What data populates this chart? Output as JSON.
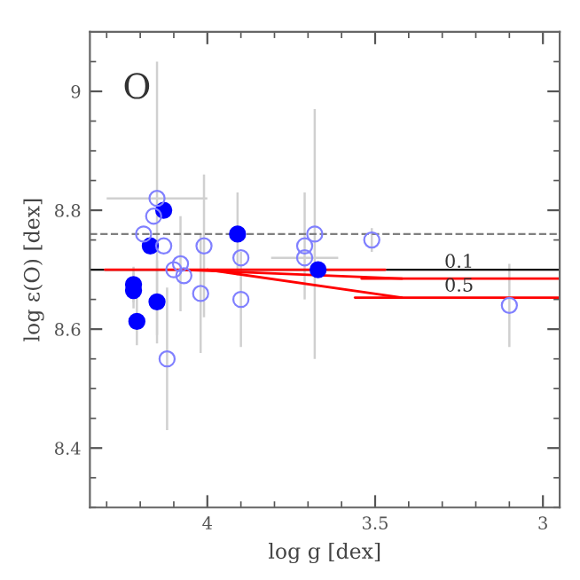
{
  "chart_data": {
    "type": "scatter",
    "xlabel": "log g [dex]",
    "ylabel": "log ε(O) [dex]",
    "xlim": [
      4.35,
      2.95
    ],
    "ylim": [
      8.3,
      9.1
    ],
    "xticks": [
      4,
      3.5,
      3
    ],
    "yticks": [
      8.4,
      8.6,
      8.8,
      9
    ],
    "grid": false,
    "legend": false,
    "annotations": [
      "O",
      {
        "text": "0.1",
        "x": 3.25,
        "y": 8.712
      },
      {
        "text": "0.5",
        "x": 3.25,
        "y": 8.672
      }
    ],
    "ref_lines": [
      {
        "axis": "y",
        "value": 8.76,
        "color": "#808080",
        "line_style": "dashed"
      },
      {
        "axis": "y",
        "value": 8.7,
        "color": "#000000",
        "line_style": "solid"
      }
    ],
    "series": [
      {
        "marker": "circle",
        "color": "#0000ff",
        "x": [
          4.13,
          4.17,
          3.91,
          3.67,
          4.22,
          4.22,
          4.15,
          4.21
        ],
        "values": [
          8.8,
          8.74,
          8.76,
          8.7,
          8.675,
          8.665,
          8.646,
          8.613
        ],
        "errors": [
          null,
          null,
          0.07,
          null,
          0.03,
          0.03,
          0.07,
          0.04
        ]
      },
      {
        "marker": "circle",
        "color": "#8080ff",
        "x": [
          4.15,
          4.16,
          4.19,
          4.13,
          4.01,
          4.08,
          4.1,
          4.07,
          4.02,
          3.9,
          3.9,
          4.12,
          3.71,
          3.71,
          3.68,
          3.51,
          3.1
        ],
        "values": [
          8.82,
          8.79,
          8.76,
          8.74,
          8.74,
          8.71,
          8.7,
          8.69,
          8.66,
          8.65,
          8.72,
          8.55,
          8.74,
          8.72,
          8.76,
          8.75,
          8.64
        ],
        "errors": [
          0.23,
          null,
          null,
          null,
          0.12,
          0.08,
          null,
          null,
          0.1,
          0.08,
          null,
          0.12,
          0.09,
          null,
          0.21,
          0.02,
          0.07
        ],
        "xerrors": [
          0.15,
          null,
          null,
          null,
          null,
          null,
          null,
          null,
          null,
          null,
          null,
          null,
          null,
          0.1,
          null,
          null,
          null
        ]
      },
      {
        "type": "line",
        "color": "#ff0000",
        "x": [
          4.305,
          3.47
        ],
        "values": [
          8.7,
          8.7
        ]
      },
      {
        "type": "line",
        "color": "#ff0000",
        "x": [
          4.08,
          3.42
        ],
        "values": [
          8.7,
          8.685
        ]
      },
      {
        "type": "line",
        "color": "#ff0000",
        "x": [
          3.54,
          2.95
        ],
        "values": [
          8.685,
          8.685
        ]
      },
      {
        "type": "line",
        "color": "#ff0000",
        "x": [
          4.0,
          3.42
        ],
        "values": [
          8.7,
          8.653
        ]
      },
      {
        "type": "line",
        "color": "#ff0000",
        "x": [
          3.56,
          2.95
        ],
        "values": [
          8.653,
          8.653
        ]
      }
    ]
  }
}
